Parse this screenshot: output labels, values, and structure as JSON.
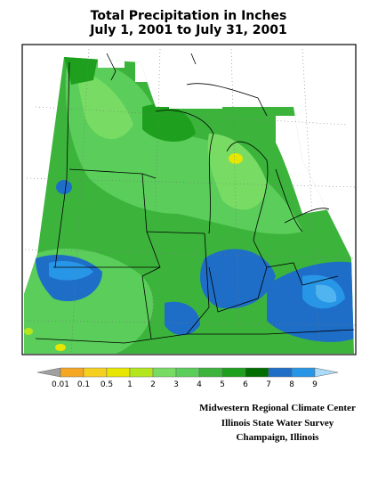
{
  "header": {
    "title": "Total Precipitation in Inches",
    "subtitle": "July 1, 2001 to July 31, 2001"
  },
  "legend": {
    "ticks": [
      0.01,
      0.1,
      0.5,
      1,
      2,
      3,
      4,
      5,
      6,
      7,
      8,
      9
    ],
    "colors": [
      "#a0a0a0",
      "#f5a623",
      "#f5d020",
      "#e6e600",
      "#b4e61e",
      "#78dc64",
      "#5acd5a",
      "#3cb43c",
      "#1ea01e",
      "#006e00",
      "#1e6ec8",
      "#2896e6",
      "#50b4f0",
      "#aadcfa"
    ]
  },
  "credits": [
    "Midwestern Regional Climate Center",
    "Illinois State Water Survey",
    "Champaign, Illinois"
  ]
}
